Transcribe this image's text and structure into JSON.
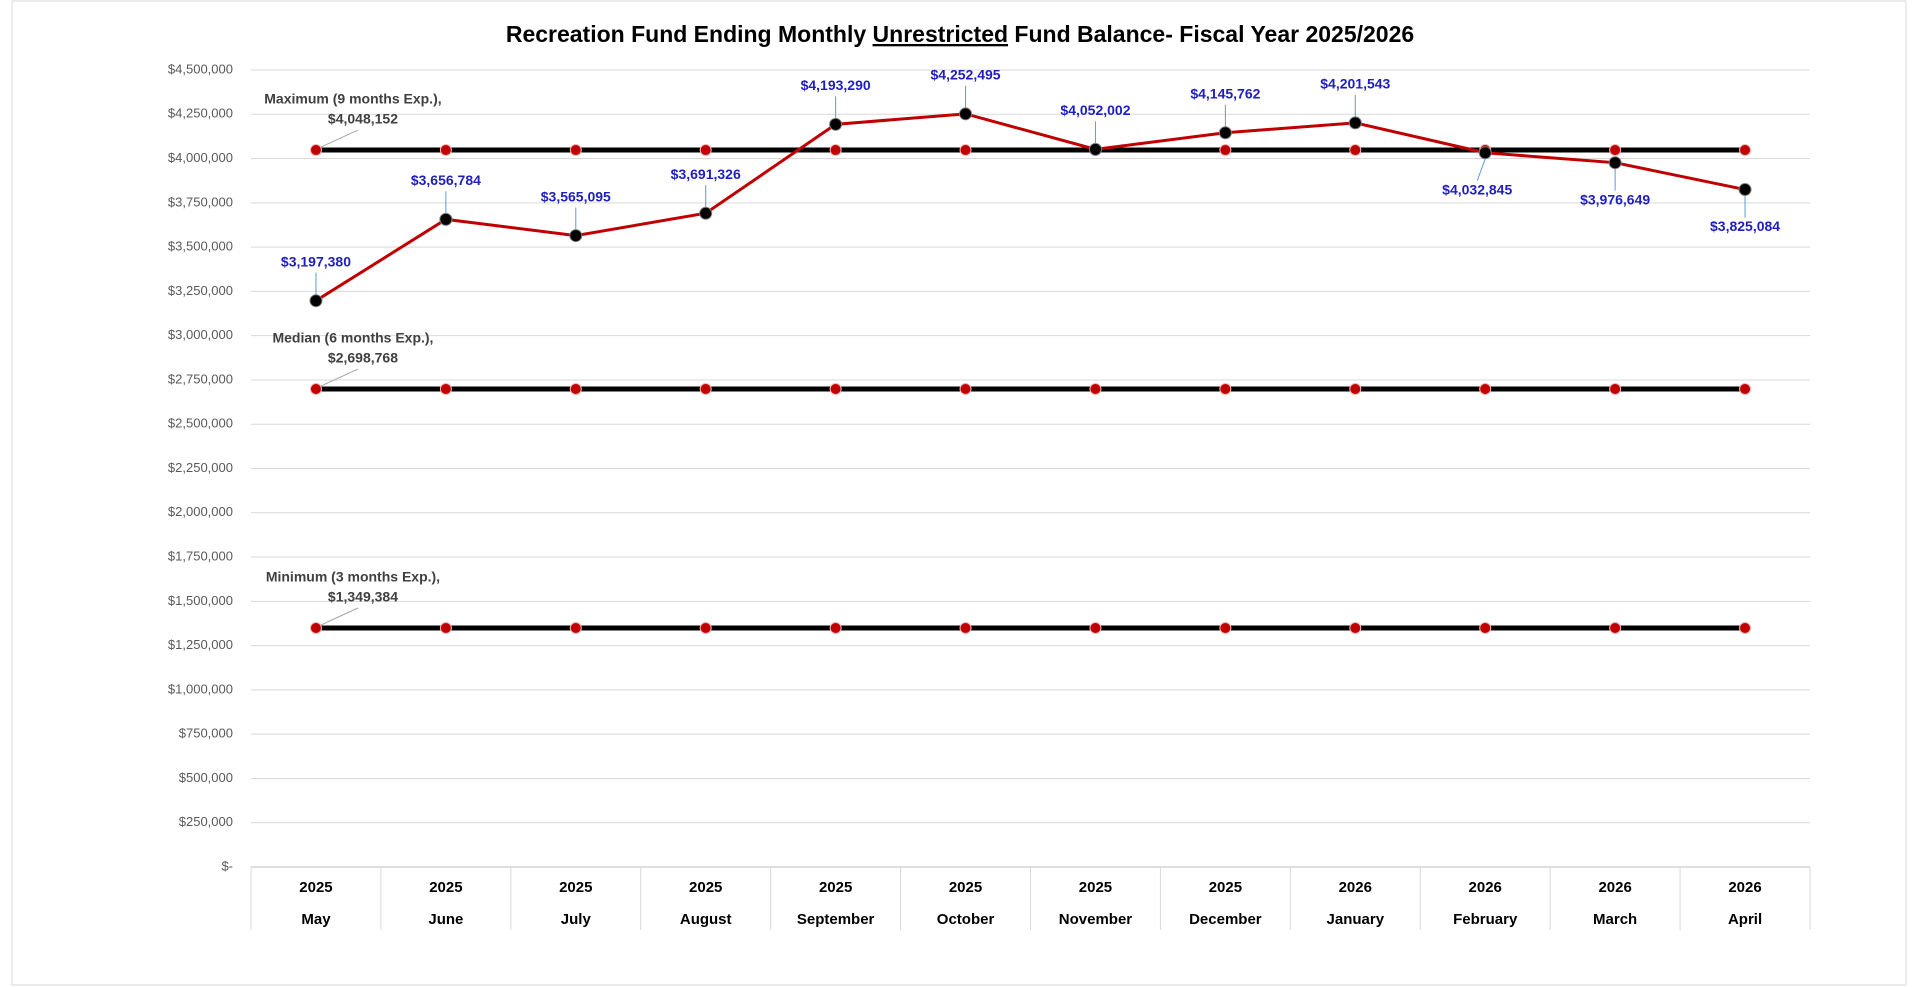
{
  "chart_data": {
    "type": "line",
    "title_parts": [
      "Recreation Fund Ending Monthly ",
      "Unrestricted",
      " Fund Balance- Fiscal Year 2025/2026"
    ],
    "years": [
      "2025",
      "2025",
      "2025",
      "2025",
      "2025",
      "2025",
      "2025",
      "2025",
      "2026",
      "2026",
      "2026",
      "2026"
    ],
    "categories": [
      "May",
      "June",
      "July",
      "August",
      "September",
      "October",
      "November",
      "December",
      "January",
      "February",
      "March",
      "April"
    ],
    "series": [
      {
        "color": "#c00000",
        "marker_color": "#000000",
        "values": [
          3197380,
          3656784,
          3565095,
          3691326,
          4193290,
          4252495,
          4052002,
          4145762,
          4201543,
          4032845,
          3976649,
          3825084
        ],
        "value_labels": [
          "$3,197,380",
          "$3,656,784",
          "$3,565,095",
          "$3,691,326",
          "$4,193,290",
          "$4,252,495",
          "$4,052,002",
          "$4,145,762",
          "$4,201,543",
          "$4,032,845",
          "$3,976,649",
          "$3,825,084"
        ]
      },
      {
        "name": "Maximum (9 months Exp.),",
        "color": "#000000",
        "marker_color": "#c00000",
        "values": [
          4048152,
          4048152,
          4048152,
          4048152,
          4048152,
          4048152,
          4048152,
          4048152,
          4048152,
          4048152,
          4048152,
          4048152
        ],
        "value_labels": [
          "$4,048,152",
          null,
          null,
          null,
          null,
          null,
          null,
          null,
          null,
          null,
          null,
          null
        ]
      },
      {
        "name": "Median (6 months Exp.),",
        "color": "#000000",
        "marker_color": "#c00000",
        "values": [
          2698768,
          2698768,
          2698768,
          2698768,
          2698768,
          2698768,
          2698768,
          2698768,
          2698768,
          2698768,
          2698768,
          2698768
        ],
        "value_labels": [
          "$2,698,768",
          null,
          null,
          null,
          null,
          null,
          null,
          null,
          null,
          null,
          null,
          null
        ]
      },
      {
        "name": "Minimum (3 months Exp.),",
        "color": "#000000",
        "marker_color": "#c00000",
        "values": [
          1349384,
          1349384,
          1349384,
          1349384,
          1349384,
          1349384,
          1349384,
          1349384,
          1349384,
          1349384,
          1349384,
          1349384
        ],
        "value_labels": [
          "$1,349,384",
          null,
          null,
          null,
          null,
          null,
          null,
          null,
          null,
          null,
          null,
          null
        ]
      }
    ],
    "ylim": [
      0,
      4500000
    ],
    "yticks": [
      {
        "value": 0,
        "label": "$-"
      },
      {
        "value": 250000,
        "label": "$250,000"
      },
      {
        "value": 500000,
        "label": "$500,000"
      },
      {
        "value": 750000,
        "label": "$750,000"
      },
      {
        "value": 1000000,
        "label": "$1,000,000"
      },
      {
        "value": 1250000,
        "label": "$1,250,000"
      },
      {
        "value": 1500000,
        "label": "$1,500,000"
      },
      {
        "value": 1750000,
        "label": "$1,750,000"
      },
      {
        "value": 2000000,
        "label": "$2,000,000"
      },
      {
        "value": 2250000,
        "label": "$2,250,000"
      },
      {
        "value": 2500000,
        "label": "$2,500,000"
      },
      {
        "value": 2750000,
        "label": "$2,750,000"
      },
      {
        "value": 3000000,
        "label": "$3,000,000"
      },
      {
        "value": 3250000,
        "label": "$3,250,000"
      },
      {
        "value": 3500000,
        "label": "$3,500,000"
      },
      {
        "value": 3750000,
        "label": "$3,750,000"
      },
      {
        "value": 4000000,
        "label": "$4,000,000"
      },
      {
        "value": 4250000,
        "label": "$4,250,000"
      },
      {
        "value": 4500000,
        "label": "$4,500,000"
      }
    ],
    "grid": true
  }
}
